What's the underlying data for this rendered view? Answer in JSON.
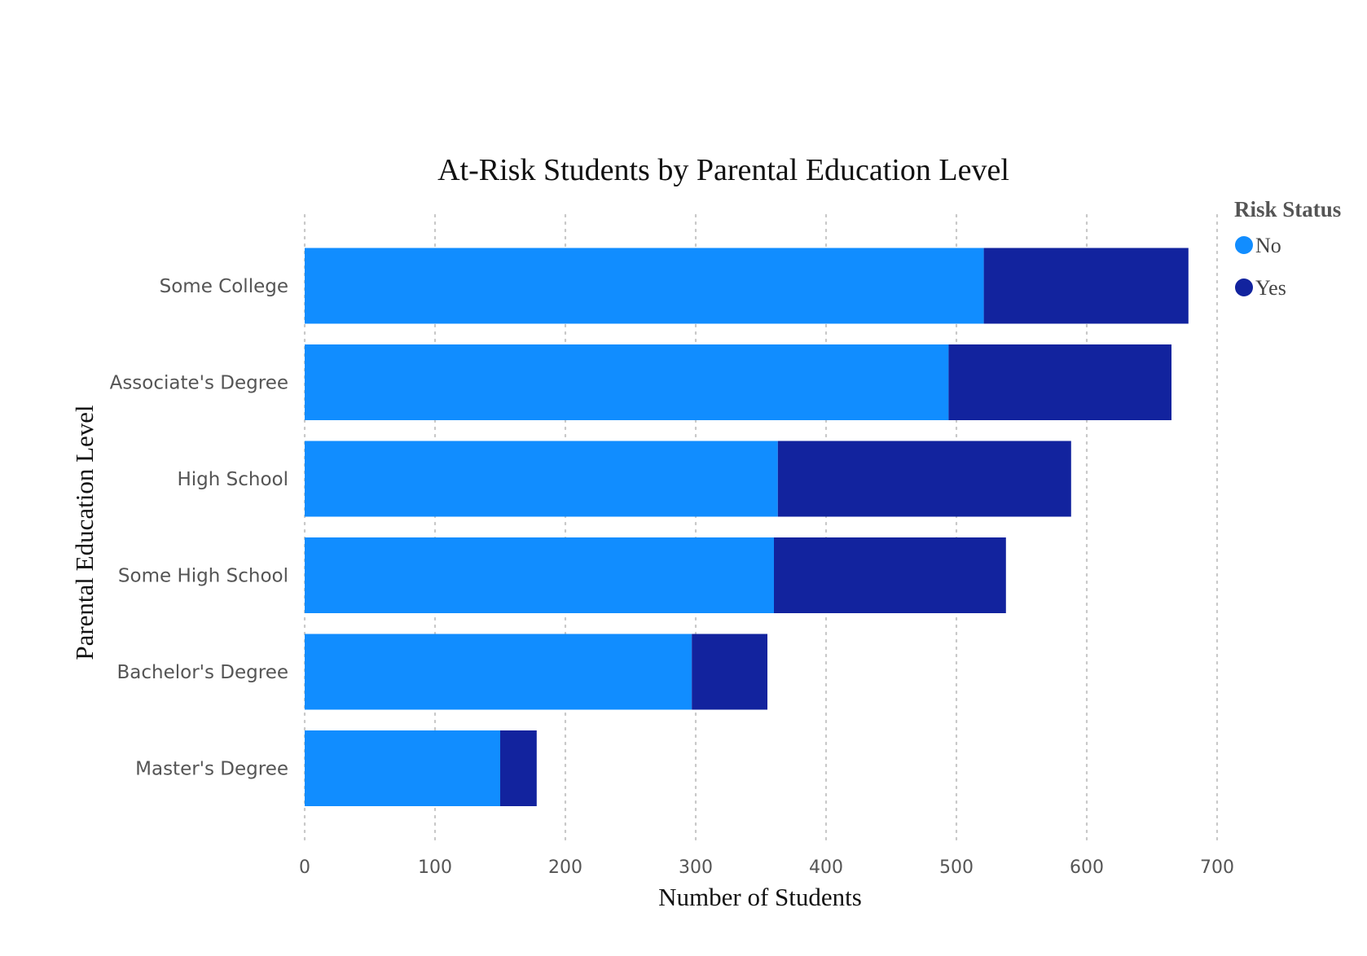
{
  "chart_data": {
    "type": "bar",
    "orientation": "horizontal",
    "stacked": true,
    "title": "At-Risk Students by Parental Education Level",
    "xlabel": "Number of Students",
    "ylabel": "Parental Education Level",
    "xlim": [
      0,
      700
    ],
    "xticks": [
      "0",
      "100",
      "200",
      "300",
      "400",
      "500",
      "600",
      "700"
    ],
    "grid": "vertical dotted",
    "categories": [
      "Some College",
      "Associate's Degree",
      "High School",
      "Some High School",
      "Bachelor's Degree",
      "Master's Degree"
    ],
    "series": [
      {
        "name": "No",
        "color": "#118DFF",
        "values": [
          521,
          494,
          363,
          360,
          297,
          150
        ]
      },
      {
        "name": "Yes",
        "color": "#12239E",
        "values": [
          157,
          171,
          225,
          178,
          58,
          28
        ]
      }
    ],
    "legend": {
      "title": "Risk Status",
      "placement": "top-right"
    }
  }
}
